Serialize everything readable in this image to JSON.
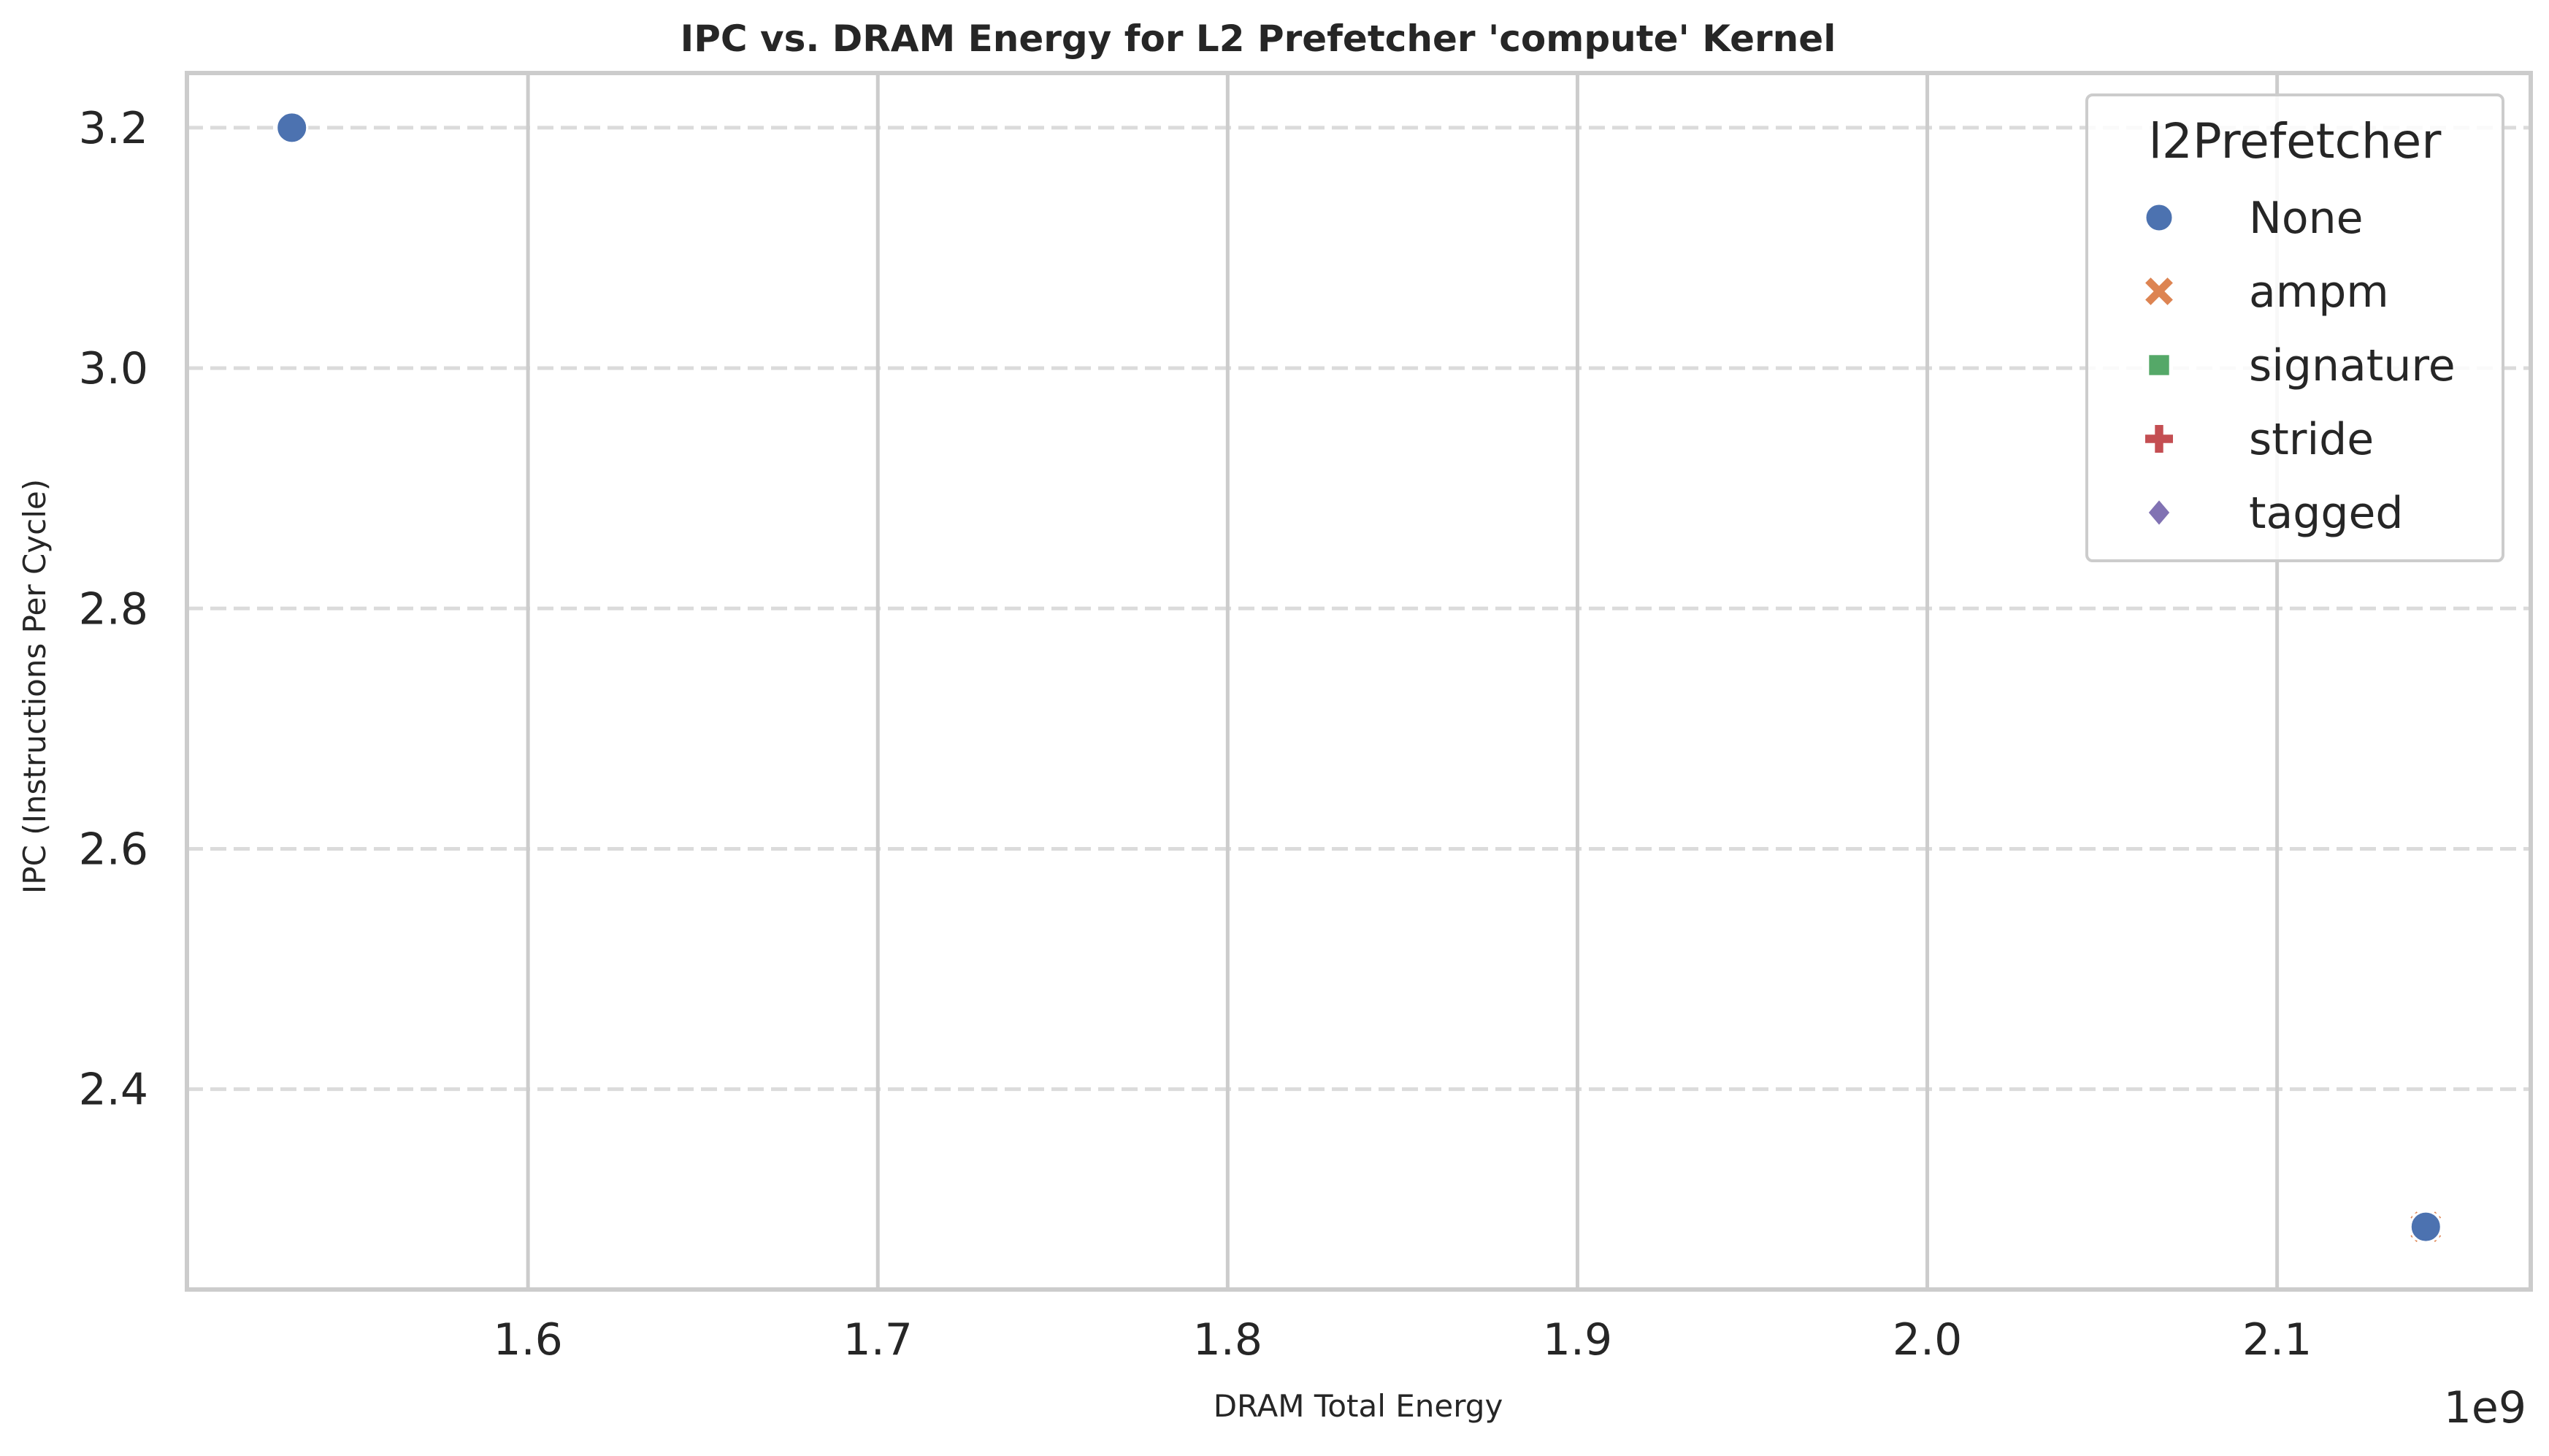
{
  "chart_data": {
    "type": "scatter",
    "title": "IPC vs. DRAM Energy for L2 Prefetcher 'compute' Kernel",
    "xlabel": "DRAM Total Energy",
    "ylabel": "IPC (Instructions Per Cycle)",
    "x_offset_label": "1e9",
    "xlim": [
      1.5025,
      2.1725
    ],
    "ylim": [
      2.2333,
      3.2455
    ],
    "xticks": [
      1.6,
      1.7,
      1.8,
      1.9,
      2.0,
      2.1
    ],
    "xtick_labels": [
      "1.6",
      "1.7",
      "1.8",
      "1.9",
      "2.0",
      "2.1"
    ],
    "yticks": [
      2.4,
      2.6,
      2.8,
      3.0,
      3.2
    ],
    "ytick_labels": [
      "2.4",
      "2.6",
      "2.8",
      "3.0",
      "3.2"
    ],
    "grid": true,
    "legend": {
      "title": "l2Prefetcher",
      "placement": "top-right",
      "entries": [
        {
          "name": "None",
          "marker": "circle",
          "color": "#4c72b0"
        },
        {
          "name": "ampm",
          "marker": "x",
          "color": "#dd8452"
        },
        {
          "name": "signature",
          "marker": "square",
          "color": "#55a868"
        },
        {
          "name": "stride",
          "marker": "plus",
          "color": "#c44e52"
        },
        {
          "name": "tagged",
          "marker": "diamond",
          "color": "#8172b3"
        }
      ]
    },
    "series": [
      {
        "name": "None",
        "marker": "circle",
        "color": "#4c72b0",
        "points": [
          {
            "x": 1.5325,
            "y": 3.2
          },
          {
            "x": 2.1425,
            "y": 2.2855
          }
        ]
      },
      {
        "name": "ampm",
        "marker": "x",
        "color": "#dd8452",
        "points": [
          {
            "x": 2.1425,
            "y": 2.2855
          }
        ]
      },
      {
        "name": "signature",
        "marker": "square",
        "color": "#55a868",
        "points": [
          {
            "x": 2.1425,
            "y": 2.2855
          }
        ]
      },
      {
        "name": "stride",
        "marker": "plus",
        "color": "#c44e52",
        "points": [
          {
            "x": 2.1425,
            "y": 2.2855
          }
        ]
      },
      {
        "name": "tagged",
        "marker": "diamond",
        "color": "#8172b3",
        "points": [
          {
            "x": 2.1425,
            "y": 2.2855
          }
        ]
      }
    ]
  }
}
